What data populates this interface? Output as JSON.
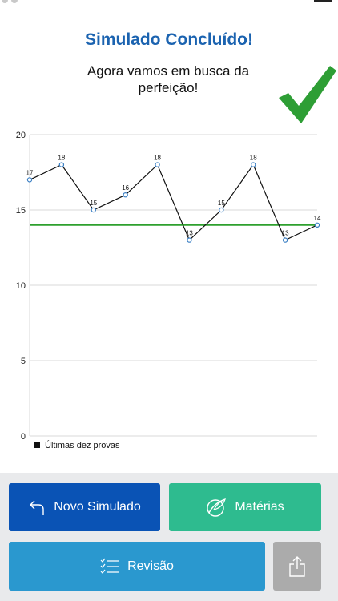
{
  "header": {
    "title": "Simulado Concluído!",
    "subtitle": "Agora vamos em busca da perfeição!"
  },
  "icons": {
    "success": "checkmark-icon",
    "new_exam": "undo-arrow-icon",
    "subjects": "globe-leaf-icon",
    "review": "checklist-icon",
    "share": "share-icon"
  },
  "colors": {
    "title": "#1b63b0",
    "check": "#2e9e35",
    "target_line": "#2ea02e",
    "btn_new": "#0a53b5",
    "btn_subjects": "#2ebb8f",
    "btn_review": "#2a98cf",
    "btn_share": "#ababab"
  },
  "chart_data": {
    "type": "line",
    "x": [
      1,
      2,
      3,
      4,
      5,
      6,
      7,
      8,
      9,
      10
    ],
    "series": [
      {
        "name": "Últimas dez provas",
        "values": [
          17,
          18,
          15,
          16,
          18,
          13,
          15,
          18,
          13,
          14
        ]
      }
    ],
    "threshold": 14,
    "ylim": [
      0,
      20
    ],
    "yticks": [
      0,
      5,
      10,
      15,
      20
    ],
    "grid": true,
    "legend": "bottom-left"
  },
  "buttons": {
    "new_exam": "Novo Simulado",
    "subjects": "Matérias",
    "review": "Revisão"
  }
}
